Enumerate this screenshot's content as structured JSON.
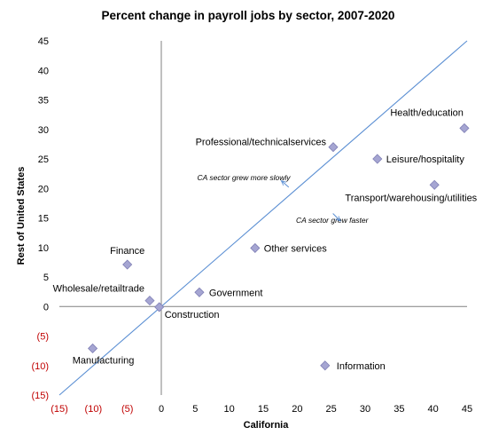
{
  "chart_data": {
    "type": "scatter",
    "title": "Percent change in payroll jobs by sector, 2007-2020",
    "xlabel": "California",
    "ylabel": "Rest of United States",
    "xlim": [
      -15,
      45
    ],
    "ylim": [
      -15,
      45
    ],
    "x_ticks": [
      {
        "value": -15,
        "label": "(15)",
        "negative": true
      },
      {
        "value": -10,
        "label": "(10)",
        "negative": true
      },
      {
        "value": -5,
        "label": "(5)",
        "negative": true
      },
      {
        "value": 0,
        "label": "0",
        "negative": false
      },
      {
        "value": 5,
        "label": "5",
        "negative": false
      },
      {
        "value": 10,
        "label": "10",
        "negative": false
      },
      {
        "value": 15,
        "label": "15",
        "negative": false
      },
      {
        "value": 20,
        "label": "20",
        "negative": false
      },
      {
        "value": 25,
        "label": "25",
        "negative": false
      },
      {
        "value": 30,
        "label": "30",
        "negative": false
      },
      {
        "value": 35,
        "label": "35",
        "negative": false
      },
      {
        "value": 40,
        "label": "40",
        "negative": false
      },
      {
        "value": 45,
        "label": "45",
        "negative": false
      }
    ],
    "y_ticks": [
      {
        "value": 45,
        "label": "45",
        "negative": false
      },
      {
        "value": 40,
        "label": "40",
        "negative": false
      },
      {
        "value": 35,
        "label": "35",
        "negative": false
      },
      {
        "value": 30,
        "label": "30",
        "negative": false
      },
      {
        "value": 25,
        "label": "25",
        "negative": false
      },
      {
        "value": 20,
        "label": "20",
        "negative": false
      },
      {
        "value": 15,
        "label": "15",
        "negative": false
      },
      {
        "value": 10,
        "label": "10",
        "negative": false
      },
      {
        "value": 5,
        "label": "5",
        "negative": false
      },
      {
        "value": 0,
        "label": "0",
        "negative": false
      },
      {
        "value": -5,
        "label": "(5)",
        "negative": true
      },
      {
        "value": -10,
        "label": "(10)",
        "negative": true
      },
      {
        "value": -15,
        "label": "(15)",
        "negative": true
      }
    ],
    "points": [
      {
        "label": "Health/education",
        "x": 44.6,
        "y": 30.2
      },
      {
        "label": "Professional/technicalservices",
        "x": 25.3,
        "y": 27.0
      },
      {
        "label": "Leisure/hospitality",
        "x": 31.8,
        "y": 25.0
      },
      {
        "label": "Transport/warehousing/utilities",
        "x": 40.2,
        "y": 20.6
      },
      {
        "label": "Other services",
        "x": 13.8,
        "y": 9.9
      },
      {
        "label": "Finance",
        "x": -5.0,
        "y": 7.1
      },
      {
        "label": "Government",
        "x": 5.6,
        "y": 2.4
      },
      {
        "label": "Wholesale/retailtrade",
        "x": -1.7,
        "y": 1.0
      },
      {
        "label": "Construction",
        "x": -0.3,
        "y": -0.1
      },
      {
        "label": "Manufacturing",
        "x": -10.1,
        "y": -7.1
      },
      {
        "label": "Information",
        "x": 24.1,
        "y": -10.0
      }
    ],
    "reference_line": {
      "type": "diagonal",
      "from": [
        -15,
        -15
      ],
      "to": [
        45,
        45
      ]
    },
    "annotations": [
      {
        "text": "CA sector grew more slowly",
        "x": 19.8,
        "y": 21.1
      },
      {
        "text": "CA sector grew faster",
        "x": 26.3,
        "y": 14.4
      }
    ],
    "marker_color": "#a5a5d2",
    "marker_stroke": "#7f7fb5",
    "line_color": "#5b8fd3",
    "negative_label_color": "#c00000",
    "grid": false
  }
}
